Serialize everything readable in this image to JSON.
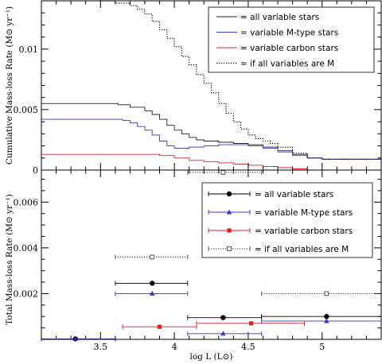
{
  "chart_data": [
    {
      "type": "line",
      "panel": "top",
      "ylabel": "Cumulative  Mass-loss Rate  (M⊙ yr⁻¹)",
      "xlim": [
        3.1,
        5.4
      ],
      "ylim": [
        0,
        0.014
      ],
      "yticks": [
        0,
        0.005,
        0.01
      ],
      "ytick_labels": [
        "0",
        "0.005",
        "0.01"
      ],
      "legend_position": "top-right",
      "series": [
        {
          "name": "= all variable stars",
          "color": "#222222",
          "dash": "",
          "x": [
            3.1,
            3.5,
            3.62,
            3.7,
            3.8,
            3.85,
            3.9,
            3.95,
            4.0,
            4.05,
            4.1,
            4.15,
            4.2,
            4.3,
            4.4,
            4.5,
            4.6,
            4.7,
            4.8,
            4.9,
            5.0,
            5.1,
            5.2,
            5.4
          ],
          "y": [
            0.0055,
            0.0055,
            0.0054,
            0.0052,
            0.0049,
            0.0046,
            0.0042,
            0.0037,
            0.0033,
            0.003,
            0.0027,
            0.0025,
            0.0024,
            0.0023,
            0.0022,
            0.0021,
            0.0019,
            0.0016,
            0.0013,
            0.001,
            0.0009,
            0.0009,
            0.0009,
            0.0009
          ]
        },
        {
          "name": "= variable M-type stars",
          "color": "#3535d8",
          "dash": "",
          "x": [
            3.1,
            3.6,
            3.65,
            3.7,
            3.75,
            3.8,
            3.85,
            3.9,
            3.95,
            4.0,
            4.05,
            4.1,
            4.2,
            4.3,
            4.4,
            4.5,
            4.6,
            4.7,
            4.8,
            4.9,
            5.0,
            5.1,
            5.2,
            5.4
          ],
          "y": [
            0.0042,
            0.0042,
            0.0041,
            0.0039,
            0.0036,
            0.0033,
            0.0029,
            0.0024,
            0.002,
            0.0018,
            0.0018,
            0.0019,
            0.002,
            0.0021,
            0.0021,
            0.002,
            0.0018,
            0.0015,
            0.0012,
            0.001,
            0.0009,
            0.0009,
            0.0009,
            0.0009
          ]
        },
        {
          "name": "= variable carbon stars",
          "color": "#e02020",
          "dash": "",
          "x": [
            3.1,
            3.85,
            3.9,
            4.0,
            4.1,
            4.2,
            4.3,
            4.4,
            4.5,
            4.6,
            4.7,
            4.8,
            4.9
          ],
          "y": [
            0.0013,
            0.0013,
            0.0012,
            0.001,
            0.0008,
            0.0007,
            0.0006,
            0.0005,
            0.0004,
            0.0003,
            0.0002,
            0.0001,
            0.0
          ]
        },
        {
          "name": "= if all variables are M",
          "color": "#000000",
          "dash": "1.2,1.8",
          "x": [
            3.1,
            3.35,
            3.5,
            3.6,
            3.7,
            3.75,
            3.8,
            3.85,
            3.9,
            3.95,
            4.0,
            4.05,
            4.1,
            4.15,
            4.2,
            4.25,
            4.3,
            4.35,
            4.4,
            4.45,
            4.5,
            4.55,
            4.6,
            4.65,
            4.7,
            4.8,
            4.9,
            5.0,
            5.2,
            5.4
          ],
          "y": [
            0.0143,
            0.0142,
            0.014,
            0.0138,
            0.0136,
            0.0133,
            0.0129,
            0.0123,
            0.0116,
            0.0109,
            0.0102,
            0.0094,
            0.0087,
            0.0079,
            0.0072,
            0.0064,
            0.0055,
            0.0047,
            0.004,
            0.0034,
            0.0029,
            0.0026,
            0.0024,
            0.0022,
            0.0019,
            0.0014,
            0.001,
            0.0009,
            0.0009,
            0.0009
          ]
        }
      ]
    },
    {
      "type": "scatter",
      "panel": "bottom",
      "xlabel": "log L (L⊙)",
      "ylabel": "Total  Mass-loss Rate  (M⊙ yr⁻¹)",
      "xlim": [
        3.1,
        5.4
      ],
      "ylim": [
        0,
        0.0074
      ],
      "xticks": [
        3.5,
        4.0,
        4.5,
        5.0
      ],
      "xtick_labels": [
        "3.5",
        "4",
        "4.5",
        "5"
      ],
      "yticks": [
        0.002,
        0.004,
        0.006
      ],
      "ytick_labels": [
        "0.002",
        "0.004",
        "0.006"
      ],
      "legend_position": "center-right",
      "series": [
        {
          "name": "= all variable stars",
          "color": "#000000",
          "marker": "circle",
          "points": [
            {
              "x": 3.33,
              "y": 2e-05,
              "xmin": 3.1,
              "xmax": 3.6
            },
            {
              "x": 3.85,
              "y": 0.00245,
              "xmin": 3.6,
              "xmax": 4.09
            },
            {
              "x": 4.33,
              "y": 0.00095,
              "xmin": 4.09,
              "xmax": 4.59
            },
            {
              "x": 5.03,
              "y": 0.001,
              "xmin": 4.59,
              "xmax": 5.4
            }
          ]
        },
        {
          "name": "= variable M-type stars",
          "color": "#3535d8",
          "marker": "triangle",
          "points": [
            {
              "x": 3.33,
              "y": 2e-05,
              "xmin": 3.1,
              "xmax": 3.6
            },
            {
              "x": 3.85,
              "y": 0.002,
              "xmin": 3.6,
              "xmax": 4.09
            },
            {
              "x": 4.33,
              "y": 0.00025,
              "xmin": 4.09,
              "xmax": 4.59
            },
            {
              "x": 5.03,
              "y": 0.0008,
              "xmin": 4.59,
              "xmax": 5.4
            }
          ]
        },
        {
          "name": "= variable carbon stars",
          "color": "#e02020",
          "marker": "square",
          "points": [
            {
              "x": 3.9,
              "y": 0.00055,
              "xmin": 3.65,
              "xmax": 4.15
            },
            {
              "x": 4.52,
              "y": 0.0007,
              "xmin": 4.15,
              "xmax": 4.88
            }
          ]
        },
        {
          "name": "= if all variables are M",
          "color": "#555555",
          "marker": "open-square",
          "dashed": true,
          "points": [
            {
              "x": 3.85,
              "y": 0.0036,
              "xmin": 3.6,
              "xmax": 4.09
            },
            {
              "x": 4.33,
              "y": 0.0073,
              "xmin": 4.09,
              "xmax": 4.59
            },
            {
              "x": 5.03,
              "y": 0.002,
              "xmin": 4.59,
              "xmax": 5.4
            }
          ]
        }
      ]
    }
  ]
}
